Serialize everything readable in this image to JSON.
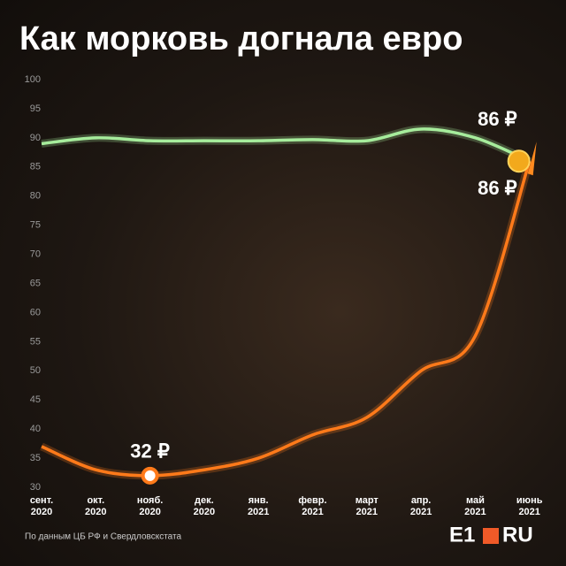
{
  "chart_data": {
    "type": "line",
    "title": "Как морковь догнала евро",
    "categories": [
      "сент. 2020",
      "окт. 2020",
      "нояб. 2020",
      "дек. 2020",
      "янв. 2021",
      "февр. 2021",
      "март 2021",
      "апр. 2021",
      "май 2021",
      "июнь 2021"
    ],
    "series": [
      {
        "name": "евро",
        "color": "#a6ec9c",
        "values": [
          89,
          90,
          89.5,
          89.5,
          89.5,
          89.7,
          89.5,
          91.5,
          90,
          86
        ],
        "value_labels": [
          null,
          null,
          null,
          null,
          null,
          null,
          null,
          null,
          null,
          "86 ₽"
        ]
      },
      {
        "name": "морковь",
        "color": "#ff7a1a",
        "values": [
          37,
          33,
          32,
          33,
          35,
          39,
          42,
          50,
          56,
          86
        ],
        "value_labels": [
          null,
          null,
          "32 ₽",
          null,
          null,
          null,
          null,
          null,
          null,
          "86 ₽"
        ]
      }
    ],
    "ylim": [
      30,
      100
    ],
    "yticks": [
      30,
      35,
      40,
      45,
      50,
      55,
      60,
      65,
      70,
      75,
      80,
      85,
      90,
      95,
      100
    ],
    "grid": false,
    "source": "По данным ЦБ РФ и Свердловскстата",
    "logo": {
      "left": "E1",
      "right": "RU"
    }
  }
}
